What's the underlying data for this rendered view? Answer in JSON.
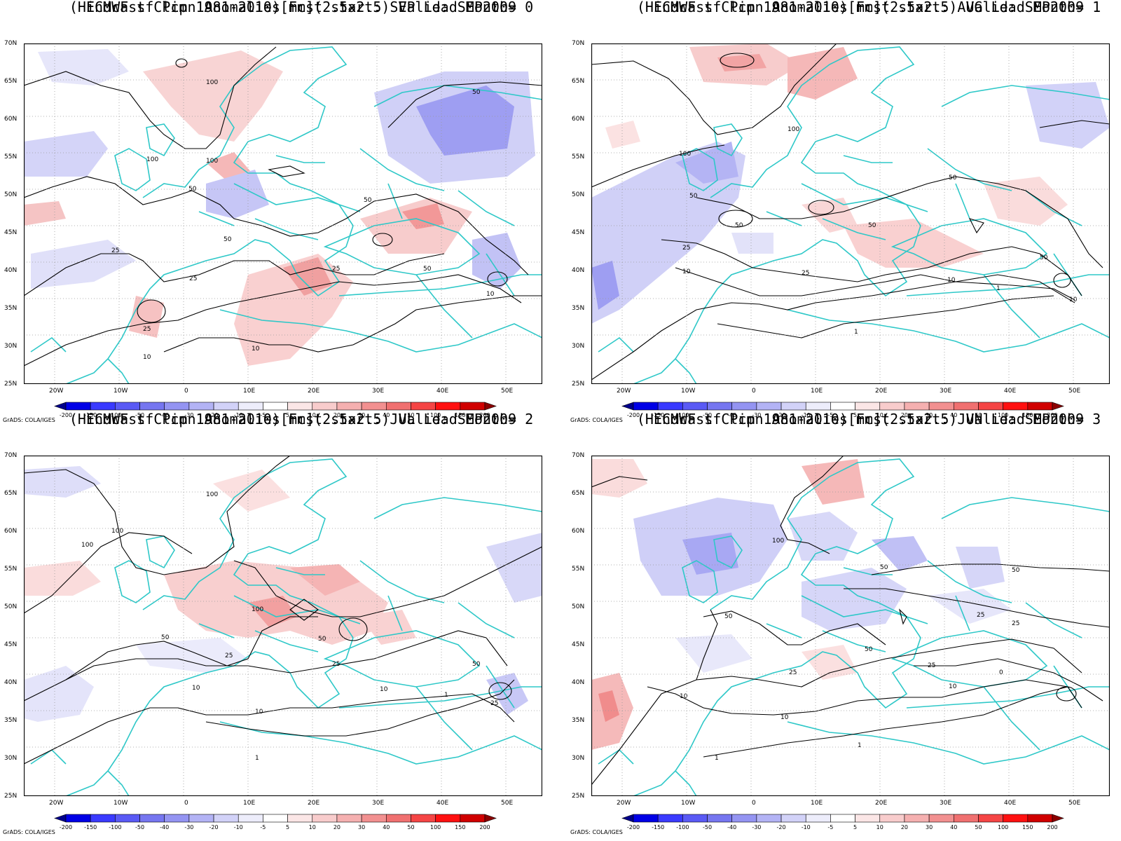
{
  "common": {
    "title_line1": "ECMWF sf Pcpn Anomalies[mm](2.5x2.5) Valid: SEP2009",
    "credit": "GrADS: COLA/IGES",
    "lat_labels": [
      "70N",
      "65N",
      "60N",
      "55N",
      "50N",
      "45N",
      "40N",
      "35N",
      "30N",
      "25N"
    ],
    "lon_labels": [
      "20W",
      "10W",
      "0",
      "10E",
      "20E",
      "30E",
      "40E",
      "50E"
    ],
    "colorbar": {
      "labels": [
        "-200",
        "-150",
        "-100",
        "-50",
        "-40",
        "-30",
        "-20",
        "-10",
        "-5",
        "5",
        "10",
        "20",
        "30",
        "40",
        "50",
        "100",
        "150",
        "200"
      ],
      "colors": [
        "#00008b",
        "#0000e6",
        "#3a3aff",
        "#5a5af5",
        "#7676f0",
        "#9494f2",
        "#b3b3f5",
        "#d2d2f8",
        "#ededfb",
        "#ffffff",
        "#fbe6e6",
        "#f8cccc",
        "#f5b0b0",
        "#f29090",
        "#f07070",
        "#f54545",
        "#ff1010",
        "#d00000",
        "#8b0000"
      ]
    },
    "colors": {
      "coast": "#2ec8c8",
      "contour": "#000000"
    }
  },
  "panels": [
    {
      "title_line2": "(Hindcast Clim 1981-2010) Fcst start: SEP  Lead Month= 0",
      "contour_labels": [
        "100",
        "100",
        "100",
        "50",
        "50",
        "50",
        "50",
        "50",
        "25",
        "25",
        "25",
        "25",
        "10",
        "10",
        "10"
      ]
    },
    {
      "title_line2": "(Hindcast Clim 1981-2010) Fcst start: AUG  Lead Month= 1",
      "contour_labels": [
        "100",
        "100",
        "50",
        "50",
        "50",
        "50",
        "50",
        "25",
        "25",
        "10",
        "10",
        "10",
        "1",
        "1"
      ]
    },
    {
      "title_line2": "(Hindcast Clim 1981-2010) Fcst start: JUL  Lead Month= 2",
      "contour_labels": [
        "100",
        "100",
        "100",
        "100",
        "50",
        "50",
        "50",
        "25",
        "25",
        "25",
        "10",
        "10",
        "10",
        "1",
        "1"
      ]
    },
    {
      "title_line2": "(Hindcast Clim 1981-2010) Fcst start: JUN  Lead Month= 3",
      "contour_labels": [
        "100",
        "50",
        "50",
        "50",
        "50",
        "25",
        "25",
        "25",
        "25",
        "10",
        "10",
        "10",
        "1",
        "1",
        "0"
      ]
    }
  ]
}
